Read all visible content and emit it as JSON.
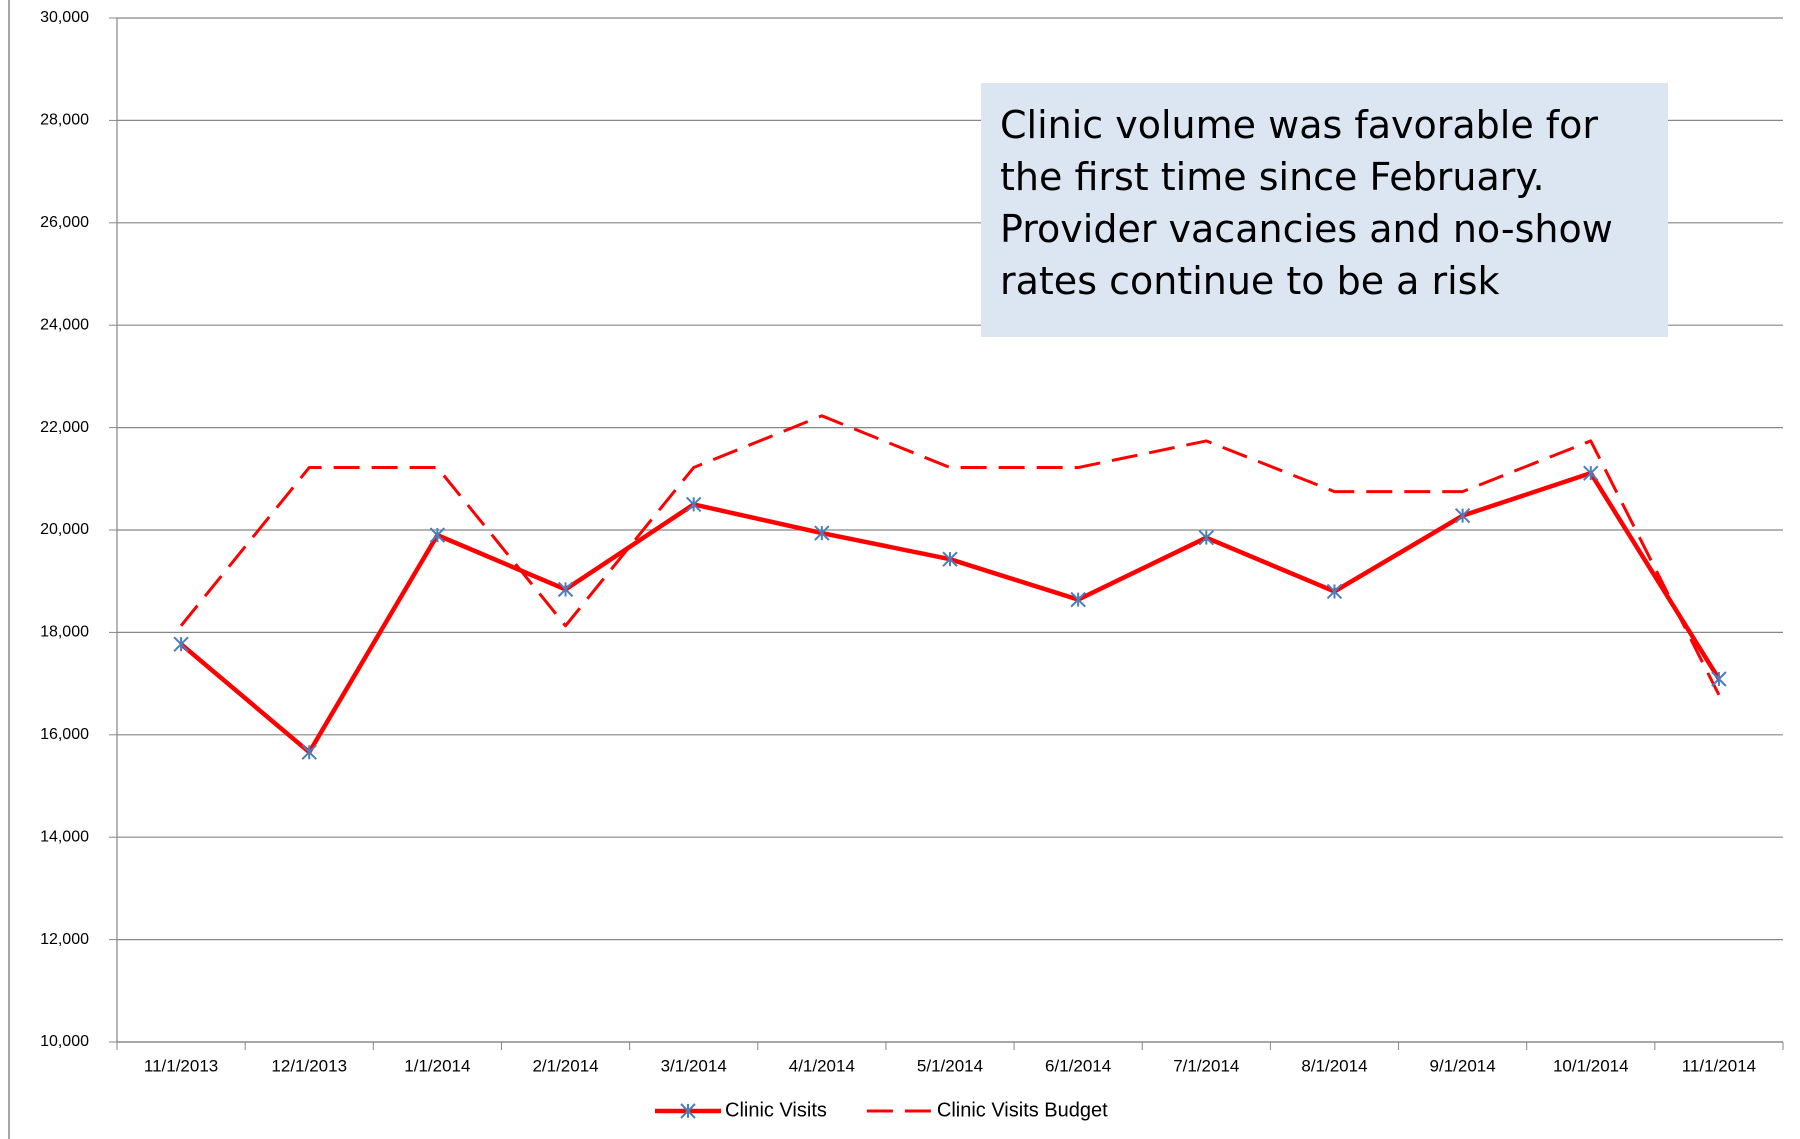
{
  "chart_data": {
    "type": "line",
    "categories": [
      "11/1/2013",
      "12/1/2013",
      "1/1/2014",
      "2/1/2014",
      "3/1/2014",
      "4/1/2014",
      "5/1/2014",
      "6/1/2014",
      "7/1/2014",
      "8/1/2014",
      "9/1/2014",
      "10/1/2014",
      "11/1/2014"
    ],
    "series": [
      {
        "name": "Clinic Visits",
        "color": "#ff0000",
        "marker": "asterisk",
        "marker_color": "#4a7ebb",
        "dashed": false,
        "values": [
          17770,
          15660,
          19900,
          18840,
          20500,
          19940,
          19430,
          18640,
          19850,
          18800,
          20280,
          21110,
          17090
        ]
      },
      {
        "name": "Clinic Visits Budget",
        "color": "#ff0000",
        "dashed": true,
        "values": [
          18130,
          21220,
          21220,
          18130,
          21220,
          22230,
          21220,
          21220,
          21740,
          20750,
          20750,
          21740,
          16780
        ]
      }
    ],
    "ylim": [
      10000,
      30000
    ],
    "yticks": [
      {
        "value": 10000,
        "label": "10,000"
      },
      {
        "value": 12000,
        "label": "12,000"
      },
      {
        "value": 14000,
        "label": "14,000"
      },
      {
        "value": 16000,
        "label": "16,000"
      },
      {
        "value": 18000,
        "label": "18,000"
      },
      {
        "value": 20000,
        "label": "20,000"
      },
      {
        "value": 22000,
        "label": "22,000"
      },
      {
        "value": 24000,
        "label": "24,000"
      },
      {
        "value": 26000,
        "label": "26,000"
      },
      {
        "value": 28000,
        "label": "28,000"
      },
      {
        "value": 30000,
        "label": "30,000"
      }
    ],
    "grid": true,
    "legend": "bottom",
    "annotation": [
      "Clinic volume was favorable for",
      "the first time since February.",
      "Provider vacancies and no-show",
      "rates continue to be a risk"
    ]
  }
}
